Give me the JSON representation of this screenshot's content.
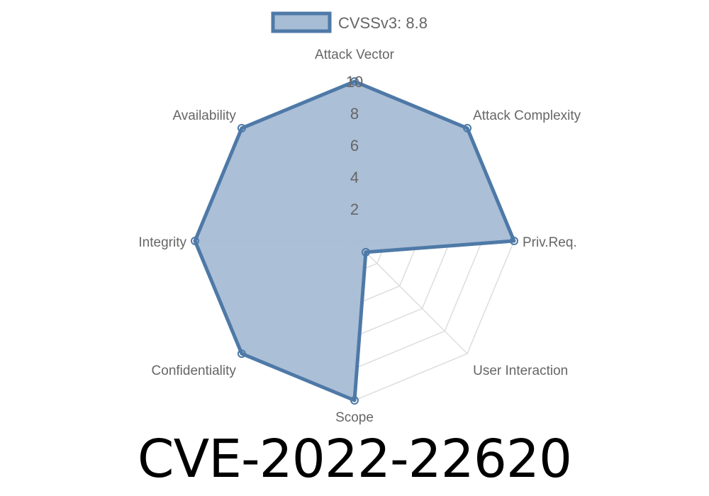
{
  "chart_data": {
    "type": "radar",
    "legend": {
      "label": "CVSSv3: 8.8",
      "placement": "top"
    },
    "axes": [
      "Attack Vector",
      "Attack Complexity",
      "Priv.Req.",
      "User Interaction",
      "Scope",
      "Confidentiality",
      "Integrity",
      "Availability"
    ],
    "series": [
      {
        "name": "CVSSv3: 8.8",
        "values": [
          10,
          10,
          10,
          1,
          10,
          10,
          10,
          10
        ]
      }
    ],
    "rlim": [
      0,
      10
    ],
    "ticks": [
      "2",
      "4",
      "6",
      "8",
      "10"
    ],
    "colors": {
      "line": "#4e79a7",
      "fill": "#a7bcd5"
    }
  },
  "title": "CVE-2022-22620"
}
